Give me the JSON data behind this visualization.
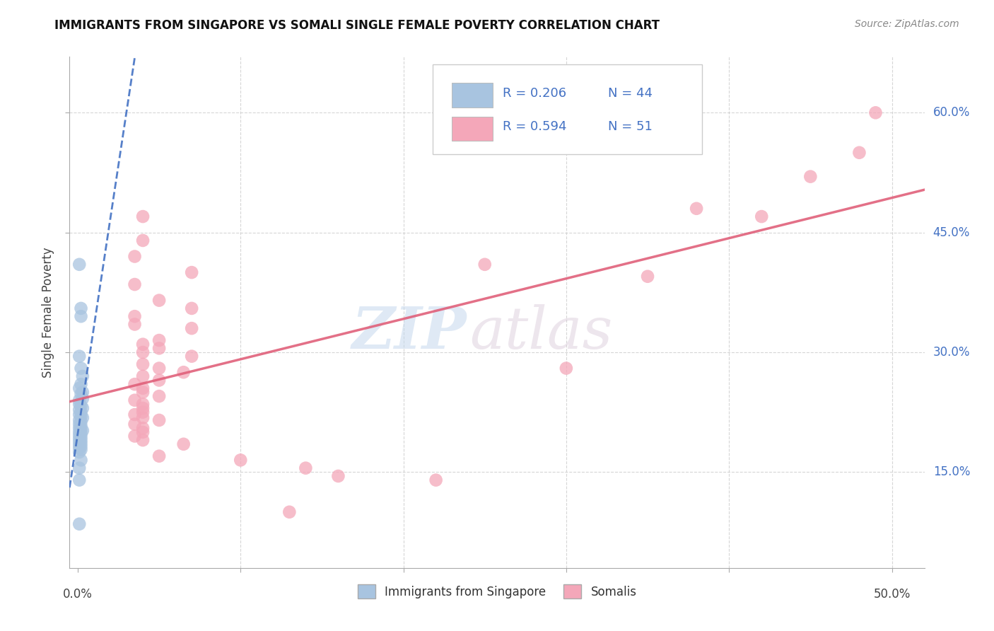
{
  "title": "IMMIGRANTS FROM SINGAPORE VS SOMALI SINGLE FEMALE POVERTY CORRELATION CHART",
  "source": "Source: ZipAtlas.com",
  "ylabel": "Single Female Poverty",
  "ytick_labels": [
    "15.0%",
    "30.0%",
    "45.0%",
    "60.0%"
  ],
  "ytick_values": [
    0.15,
    0.3,
    0.45,
    0.6
  ],
  "xtick_values": [
    0.0,
    0.1,
    0.2,
    0.3,
    0.4,
    0.5
  ],
  "xlim": [
    -0.005,
    0.52
  ],
  "ylim": [
    0.03,
    0.67
  ],
  "R_singapore": 0.206,
  "N_singapore": 44,
  "R_somali": 0.594,
  "N_somali": 51,
  "singapore_color": "#a8c4e0",
  "singapore_line_color": "#4472c4",
  "somali_color": "#f4a7b9",
  "somali_line_color": "#e0607a",
  "singapore_points": [
    [
      0.001,
      0.41
    ],
    [
      0.002,
      0.355
    ],
    [
      0.002,
      0.345
    ],
    [
      0.001,
      0.295
    ],
    [
      0.002,
      0.28
    ],
    [
      0.003,
      0.27
    ],
    [
      0.002,
      0.26
    ],
    [
      0.001,
      0.255
    ],
    [
      0.003,
      0.25
    ],
    [
      0.002,
      0.248
    ],
    [
      0.003,
      0.242
    ],
    [
      0.001,
      0.24
    ],
    [
      0.001,
      0.235
    ],
    [
      0.002,
      0.233
    ],
    [
      0.003,
      0.23
    ],
    [
      0.001,
      0.228
    ],
    [
      0.002,
      0.225
    ],
    [
      0.001,
      0.222
    ],
    [
      0.002,
      0.22
    ],
    [
      0.003,
      0.218
    ],
    [
      0.001,
      0.215
    ],
    [
      0.002,
      0.213
    ],
    [
      0.001,
      0.21
    ],
    [
      0.002,
      0.208
    ],
    [
      0.001,
      0.205
    ],
    [
      0.002,
      0.203
    ],
    [
      0.003,
      0.202
    ],
    [
      0.001,
      0.2
    ],
    [
      0.002,
      0.198
    ],
    [
      0.001,
      0.196
    ],
    [
      0.002,
      0.194
    ],
    [
      0.001,
      0.192
    ],
    [
      0.002,
      0.19
    ],
    [
      0.001,
      0.188
    ],
    [
      0.002,
      0.186
    ],
    [
      0.001,
      0.184
    ],
    [
      0.002,
      0.182
    ],
    [
      0.001,
      0.18
    ],
    [
      0.002,
      0.178
    ],
    [
      0.001,
      0.175
    ],
    [
      0.002,
      0.165
    ],
    [
      0.001,
      0.155
    ],
    [
      0.001,
      0.14
    ],
    [
      0.001,
      0.085
    ]
  ],
  "somali_points": [
    [
      0.04,
      0.47
    ],
    [
      0.04,
      0.44
    ],
    [
      0.035,
      0.42
    ],
    [
      0.07,
      0.4
    ],
    [
      0.035,
      0.385
    ],
    [
      0.05,
      0.365
    ],
    [
      0.07,
      0.355
    ],
    [
      0.035,
      0.345
    ],
    [
      0.035,
      0.335
    ],
    [
      0.07,
      0.33
    ],
    [
      0.05,
      0.315
    ],
    [
      0.04,
      0.31
    ],
    [
      0.05,
      0.305
    ],
    [
      0.04,
      0.3
    ],
    [
      0.07,
      0.295
    ],
    [
      0.04,
      0.285
    ],
    [
      0.05,
      0.28
    ],
    [
      0.065,
      0.275
    ],
    [
      0.04,
      0.27
    ],
    [
      0.05,
      0.265
    ],
    [
      0.035,
      0.26
    ],
    [
      0.04,
      0.255
    ],
    [
      0.04,
      0.25
    ],
    [
      0.05,
      0.245
    ],
    [
      0.035,
      0.24
    ],
    [
      0.04,
      0.235
    ],
    [
      0.04,
      0.23
    ],
    [
      0.04,
      0.225
    ],
    [
      0.035,
      0.222
    ],
    [
      0.04,
      0.218
    ],
    [
      0.05,
      0.215
    ],
    [
      0.035,
      0.21
    ],
    [
      0.04,
      0.205
    ],
    [
      0.04,
      0.2
    ],
    [
      0.035,
      0.195
    ],
    [
      0.04,
      0.19
    ],
    [
      0.065,
      0.185
    ],
    [
      0.05,
      0.17
    ],
    [
      0.1,
      0.165
    ],
    [
      0.14,
      0.155
    ],
    [
      0.16,
      0.145
    ],
    [
      0.22,
      0.14
    ],
    [
      0.3,
      0.28
    ],
    [
      0.38,
      0.48
    ],
    [
      0.42,
      0.47
    ],
    [
      0.45,
      0.52
    ],
    [
      0.48,
      0.55
    ],
    [
      0.49,
      0.6
    ],
    [
      0.35,
      0.395
    ],
    [
      0.25,
      0.41
    ],
    [
      0.13,
      0.1
    ]
  ],
  "watermark_zip": "ZIP",
  "watermark_atlas": "atlas",
  "background_color": "#ffffff",
  "grid_color": "#cccccc"
}
